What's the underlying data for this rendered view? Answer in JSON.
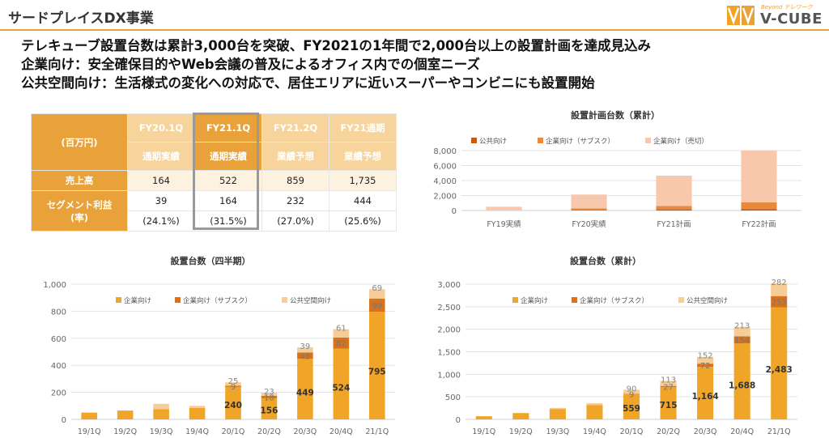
{
  "header": {
    "title": "サードプレイスDX事業",
    "logo_tagline": "Beyond テレワーク",
    "logo_name": "V-CUBE"
  },
  "headlines": [
    "テレキューブ設置台数は累計3,000台を突破、FY2021の1年間で2,000台以上の設置計画を達成見込み",
    "企業向け：安全確保目的やWeb会議の普及によるオフィス内での個室ニーズ",
    "公共空間向け：生活様式の変化への対応で、居住エリアに近いスーパーやコンビニにも設置開始"
  ],
  "financial_table": {
    "unit_label": "(百万円)",
    "columns": [
      {
        "period": "FY20.1Q",
        "type": "通期実績"
      },
      {
        "period": "FY21.1Q",
        "type": "通期実績"
      },
      {
        "period": "FY21.2Q",
        "type": "業績予想"
      },
      {
        "period": "FY21通期",
        "type": "業績予想"
      }
    ],
    "sales_label": "売上高",
    "sales": [
      "164",
      "522",
      "859",
      "1,735"
    ],
    "profit_label_1": "セグメント利益",
    "profit_label_2": "(率)",
    "profit": [
      "39",
      "164",
      "232",
      "444"
    ],
    "profit_rate": [
      "(24.1%)",
      "(31.5%)",
      "(27.0%)",
      "(25.6%)"
    ]
  },
  "colors": {
    "accent": "#e9a23a",
    "corporate": "#f0a428",
    "subscription": "#d8731c",
    "public": "#f6cd96",
    "plan_public": "#c85a16",
    "plan_sub": "#e88a3e",
    "plan_sale": "#f7c8ac",
    "grid": "#e3e3e3",
    "axis_text": "#666666"
  },
  "chart_data": [
    {
      "id": "plan",
      "type": "bar",
      "stacked": true,
      "title": "設置計画台数（累計）",
      "categories": [
        "FY19実績",
        "FY20実績",
        "FY21計画",
        "FY22計画"
      ],
      "series": [
        {
          "name": "公共向け",
          "values": [
            0,
            80,
            150,
            200
          ]
        },
        {
          "name": "企業向け（サブスク）",
          "values": [
            0,
            200,
            450,
            900
          ]
        },
        {
          "name": "企業向け（売切）",
          "values": [
            500,
            1850,
            4050,
            6900
          ]
        }
      ],
      "ylim": [
        0,
        8000
      ],
      "yticks": [
        "8,000",
        "6,000",
        "4,000",
        "2,000",
        "0"
      ],
      "legend": "top"
    },
    {
      "id": "quarterly",
      "type": "bar",
      "stacked": true,
      "title": "設置台数（四半期）",
      "categories": [
        "19/1Q",
        "19/2Q",
        "19/3Q",
        "19/4Q",
        "20/1Q",
        "20/2Q",
        "20/3Q",
        "20/4Q",
        "21/1Q"
      ],
      "series": [
        {
          "name": "企業向け",
          "values": [
            50,
            65,
            75,
            85,
            240,
            156,
            449,
            524,
            795
          ]
        },
        {
          "name": "企業向け（サブスク）",
          "values": [
            0,
            0,
            0,
            0,
            9,
            18,
            45,
            82,
            99
          ]
        },
        {
          "name": "公共空間向け",
          "values": [
            0,
            0,
            40,
            15,
            25,
            23,
            39,
            61,
            69
          ]
        }
      ],
      "labels": [
        [
          "",
          "",
          "",
          "",
          "240",
          "156",
          "449",
          "524",
          "795"
        ],
        [
          "",
          "",
          "",
          "",
          "9",
          "18",
          "45",
          "82",
          "99"
        ],
        [
          "",
          "",
          "",
          "",
          "25",
          "23",
          "39",
          "61",
          "69"
        ]
      ],
      "ylim": [
        0,
        1000
      ],
      "yticks": [
        "1,000",
        "800",
        "600",
        "400",
        "200",
        "0"
      ],
      "legend": "top"
    },
    {
      "id": "cumulative",
      "type": "bar",
      "stacked": true,
      "title": "設置台数（累計）",
      "categories": [
        "19/1Q",
        "19/2Q",
        "19/3Q",
        "19/4Q",
        "20/1Q",
        "20/2Q",
        "20/3Q",
        "20/4Q",
        "21/1Q"
      ],
      "series": [
        {
          "name": "企業向け",
          "values": [
            70,
            140,
            230,
            320,
            559,
            715,
            1164,
            1688,
            2483
          ]
        },
        {
          "name": "企業向け（サブスク）",
          "values": [
            0,
            0,
            0,
            0,
            9,
            27,
            72,
            154,
            253
          ]
        },
        {
          "name": "公共空間向け",
          "values": [
            0,
            0,
            25,
            40,
            90,
            113,
            152,
            213,
            282
          ]
        }
      ],
      "labels": [
        [
          "",
          "",
          "",
          "",
          "559",
          "715",
          "1,164",
          "1,688",
          "2,483"
        ],
        [
          "",
          "",
          "",
          "",
          "9",
          "27",
          "72",
          "154",
          "253"
        ],
        [
          "",
          "",
          "",
          "",
          "90",
          "113",
          "152",
          "213",
          "282"
        ]
      ],
      "ylim": [
        0,
        3000
      ],
      "yticks": [
        "3,000",
        "2,500",
        "2,000",
        "1,500",
        "1,000",
        "500",
        "0"
      ],
      "legend": "top"
    }
  ]
}
